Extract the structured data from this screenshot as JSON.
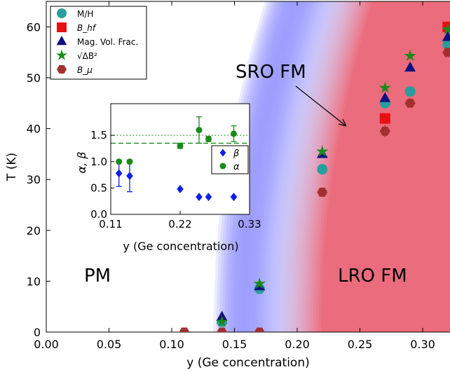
{
  "chart_data": [
    {
      "type": "scatter",
      "xlabel": "y (Ge concentration)",
      "ylabel": "T (K)",
      "xlim": [
        0.0,
        0.32
      ],
      "ylim": [
        0,
        65
      ],
      "xticks": [
        0.0,
        0.05,
        0.1,
        0.15,
        0.2,
        0.25,
        0.3
      ],
      "xtick_labels": [
        "0.00",
        "0.05",
        "0.10",
        "0.15",
        "0.20",
        "0.25",
        "0.30"
      ],
      "yticks": [
        0,
        10,
        20,
        30,
        40,
        50,
        60
      ],
      "ytick_labels": [
        "0",
        "10",
        "20",
        "30",
        "40",
        "50",
        "60"
      ],
      "grid": false,
      "legend_position": "top-left",
      "annotations": [
        {
          "text": "SRO FM",
          "arrow_to": [
            0.24,
            40.5
          ]
        },
        {
          "text": "PM"
        },
        {
          "text": "LRO FM"
        }
      ],
      "phase_boundary": {
        "y0": 0.133,
        "exponent": 0.5,
        "coefficient": 320
      },
      "series": [
        {
          "name": "M/H",
          "marker": "circle",
          "color": "#2a9d9d",
          "x": [
            0.14,
            0.17,
            0.22,
            0.27,
            0.29,
            0.32
          ],
          "y": [
            2.0,
            8.5,
            32.0,
            45.0,
            47.3,
            56.5
          ]
        },
        {
          "name": "B_hf",
          "marker": "square",
          "color": "#e81010",
          "x": [
            0.27,
            0.32
          ],
          "y": [
            42.0,
            60.0
          ]
        },
        {
          "name": "Mag. Vol. Frac.",
          "marker": "triangle",
          "color": "#101080",
          "x": [
            0.14,
            0.17,
            0.22,
            0.27,
            0.29,
            0.32
          ],
          "y": [
            3.0,
            9.0,
            35.0,
            46.0,
            52.0,
            58.0
          ]
        },
        {
          "name": "√ΔB²",
          "marker": "star",
          "color": "#1a8a1a",
          "x": [
            0.14,
            0.17,
            0.22,
            0.27,
            0.29,
            0.32
          ],
          "y": [
            2.0,
            9.5,
            35.5,
            48.0,
            54.3,
            59.5
          ]
        },
        {
          "name": "B_μ",
          "marker": "hexagon",
          "color": "#a33030",
          "x": [
            0.11,
            0.14,
            0.17,
            0.22,
            0.27,
            0.29,
            0.32
          ],
          "y": [
            0.0,
            0.0,
            0.0,
            27.5,
            39.5,
            45.0,
            55.0
          ],
          "yerr": [
            0,
            0,
            0,
            0,
            1.2,
            0,
            0
          ]
        }
      ]
    },
    {
      "type": "scatter",
      "inset": true,
      "xlabel": "y (Ge concentration)",
      "ylabel": "α, β",
      "xlim": [
        0.11,
        0.33
      ],
      "ylim": [
        0.0,
        2.1
      ],
      "xticks": [
        0.11,
        0.22,
        0.33
      ],
      "xtick_labels": [
        "0.11",
        "0.22",
        "0.33"
      ],
      "yticks": [
        0.0,
        0.5,
        1.0,
        1.5
      ],
      "ytick_labels": [
        "0.0",
        "0.5",
        "1.0",
        "1.5"
      ],
      "legend_position": "right",
      "reference_lines": [
        {
          "y": 1.5,
          "style": "dotted",
          "color": "#1a8a1a"
        },
        {
          "y": 1.35,
          "style": "dashed",
          "color": "#1a8a1a"
        }
      ],
      "series": [
        {
          "name": "β",
          "marker": "diamond",
          "color": "#1020e8",
          "x": [
            0.123,
            0.14,
            0.22,
            0.25,
            0.265,
            0.305
          ],
          "y": [
            0.78,
            0.73,
            0.48,
            0.33,
            0.33,
            0.33
          ],
          "yerr": [
            0.25,
            0.3,
            0,
            0,
            0,
            0
          ]
        },
        {
          "name": "α",
          "marker": "circle",
          "color": "#1a8a1a",
          "x": [
            0.123,
            0.14,
            0.22,
            0.25,
            0.265,
            0.305
          ],
          "y": [
            1.0,
            1.0,
            1.3,
            1.6,
            1.43,
            1.53
          ],
          "yerr": [
            0,
            0,
            0.05,
            0.25,
            0.05,
            0.15
          ]
        }
      ]
    }
  ]
}
